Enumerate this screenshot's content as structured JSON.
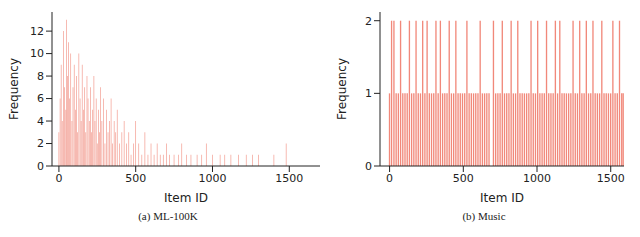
{
  "chart_data": [
    {
      "type": "bar",
      "title": "(a) ML-100K",
      "x_label": "Item ID",
      "y_label": "Frequency",
      "color": "#ef7b6b",
      "xlim": [
        -45,
        1700
      ],
      "ylim": [
        0,
        13.7
      ],
      "xticks": [
        0,
        500,
        1000,
        1500
      ],
      "yticks": [
        0,
        2,
        4,
        6,
        8,
        10,
        12
      ],
      "x": [
        0,
        8,
        15,
        22,
        30,
        37,
        45,
        50,
        56,
        62,
        70,
        77,
        85,
        92,
        100,
        108,
        115,
        122,
        130,
        138,
        145,
        152,
        160,
        168,
        175,
        183,
        190,
        198,
        205,
        212,
        220,
        228,
        235,
        243,
        250,
        258,
        265,
        272,
        280,
        290,
        300,
        310,
        320,
        330,
        340,
        350,
        360,
        370,
        380,
        395,
        410,
        425,
        440,
        455,
        470,
        485,
        500,
        520,
        540,
        560,
        580,
        600,
        620,
        640,
        660,
        680,
        700,
        720,
        750,
        780,
        800,
        830,
        860,
        900,
        930,
        960,
        1000,
        1050,
        1080,
        1120,
        1170,
        1220,
        1260,
        1300,
        1400,
        1480
      ],
      "values": [
        3,
        6,
        9,
        4,
        12,
        7,
        5,
        13,
        8,
        11,
        6,
        10,
        4,
        7,
        9,
        5,
        8,
        3,
        10,
        6,
        4,
        9,
        5,
        7,
        3,
        8,
        6,
        4,
        7,
        3,
        5,
        8,
        4,
        6,
        2,
        5,
        3,
        7,
        4,
        6,
        2,
        5,
        3,
        4,
        6,
        2,
        4,
        3,
        5,
        2,
        3,
        4,
        2,
        3,
        1,
        2,
        4,
        2,
        1,
        3,
        1,
        2,
        1,
        2,
        1,
        1,
        2,
        1,
        1,
        1,
        2,
        1,
        1,
        1,
        1,
        2,
        1,
        1,
        1,
        1,
        1,
        1,
        1,
        1,
        1,
        2
      ]
    },
    {
      "type": "bar",
      "title": "(b) Music",
      "x_label": "Item ID",
      "y_label": "Frequency",
      "color": "#ef7b6b",
      "xlim": [
        -65,
        1590
      ],
      "ylim": [
        0,
        2.12
      ],
      "xticks": [
        0,
        500,
        1000,
        1500
      ],
      "yticks": [
        0,
        1,
        2
      ],
      "x": [
        0,
        14,
        30,
        45,
        60,
        75,
        90,
        105,
        120,
        135,
        150,
        165,
        180,
        195,
        210,
        225,
        240,
        255,
        270,
        285,
        300,
        315,
        330,
        345,
        360,
        375,
        390,
        405,
        420,
        435,
        450,
        465,
        480,
        495,
        510,
        525,
        540,
        555,
        570,
        585,
        600,
        615,
        630,
        645,
        660,
        675,
        705,
        720,
        735,
        750,
        765,
        780,
        795,
        810,
        825,
        840,
        855,
        870,
        885,
        900,
        915,
        930,
        945,
        960,
        975,
        990,
        1005,
        1020,
        1035,
        1050,
        1065,
        1080,
        1095,
        1110,
        1125,
        1140,
        1155,
        1170,
        1185,
        1200,
        1215,
        1230,
        1245,
        1260,
        1275,
        1290,
        1305,
        1320,
        1335,
        1350,
        1365,
        1380,
        1395,
        1410,
        1425,
        1440,
        1455,
        1470,
        1485,
        1500,
        1515,
        1530,
        1545,
        1560,
        1575,
        1585
      ],
      "values": [
        1,
        2,
        2,
        1,
        1,
        2,
        1,
        1,
        1,
        2,
        1,
        1,
        2,
        1,
        1,
        2,
        1,
        2,
        1,
        1,
        1,
        2,
        1,
        2,
        1,
        1,
        1,
        2,
        1,
        1,
        2,
        1,
        1,
        1,
        1,
        2,
        1,
        1,
        1,
        1,
        1,
        2,
        1,
        1,
        1,
        1,
        2,
        1,
        1,
        1,
        2,
        1,
        1,
        1,
        2,
        1,
        1,
        2,
        1,
        1,
        1,
        1,
        1,
        2,
        1,
        1,
        2,
        1,
        1,
        1,
        2,
        1,
        1,
        1,
        2,
        1,
        2,
        1,
        1,
        1,
        1,
        1,
        2,
        1,
        1,
        2,
        1,
        1,
        2,
        1,
        1,
        2,
        1,
        1,
        1,
        2,
        1,
        1,
        1,
        1,
        2,
        1,
        1,
        2,
        1,
        1
      ]
    }
  ]
}
